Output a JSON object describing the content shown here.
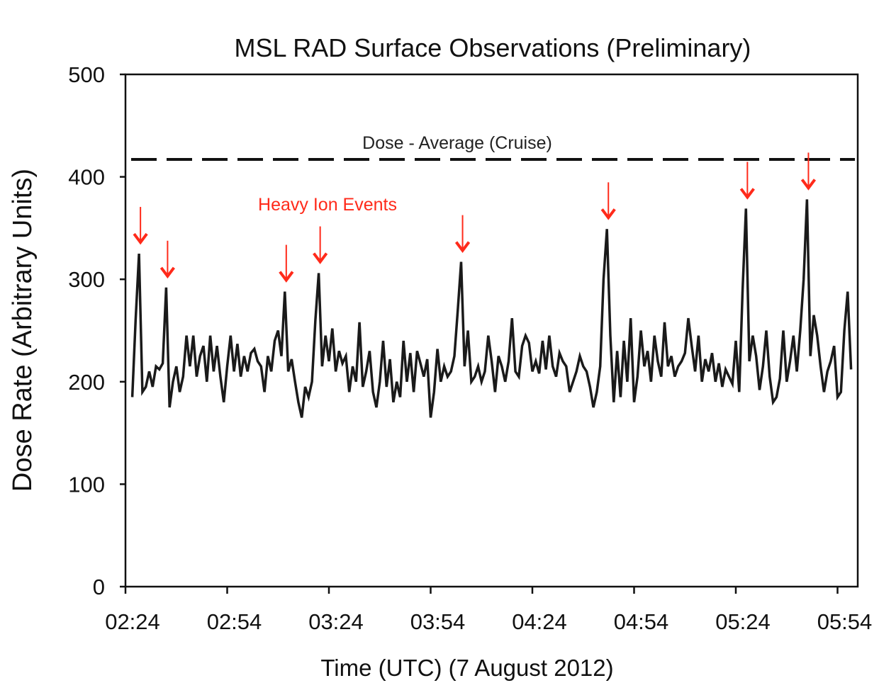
{
  "chart_data": {
    "type": "line",
    "title": "MSL RAD Surface Observations (Preliminary)",
    "xlabel": "Time (UTC) (7 August 2012)",
    "ylabel": "Dose Rate (Arbitrary Units)",
    "ylim": [
      0,
      500
    ],
    "xlim": [
      "02:24",
      "05:58"
    ],
    "yticks": [
      "0",
      "100",
      "200",
      "300",
      "400",
      "500"
    ],
    "xticks": [
      "02:24",
      "02:54",
      "03:24",
      "03:54",
      "04:24",
      "04:54",
      "05:24",
      "05:54"
    ],
    "grid": false,
    "line_color": "#1a1a1a",
    "reference_line": {
      "label": "Dose - Average (Cruise)",
      "value": 417,
      "style": "dashed",
      "color": "#111111"
    },
    "annotation": {
      "label": "Heavy Ion Events",
      "color": "#ff2a1a",
      "event_times": [
        "02:28",
        "02:36",
        "03:11",
        "03:21",
        "04:03",
        "04:46",
        "05:27",
        "05:45"
      ]
    },
    "x": [
      "02:26",
      "02:27",
      "02:28",
      "02:29",
      "02:30",
      "02:31",
      "02:32",
      "02:33",
      "02:34",
      "02:35",
      "02:36",
      "02:37",
      "02:38",
      "02:39",
      "02:40",
      "02:41",
      "02:42",
      "02:43",
      "02:44",
      "02:45",
      "02:46",
      "02:47",
      "02:48",
      "02:49",
      "02:50",
      "02:51",
      "02:52",
      "02:53",
      "02:54",
      "02:55",
      "02:56",
      "02:57",
      "02:58",
      "02:59",
      "03:00",
      "03:01",
      "03:02",
      "03:03",
      "03:04",
      "03:05",
      "03:06",
      "03:07",
      "03:08",
      "03:09",
      "03:10",
      "03:11",
      "03:12",
      "03:13",
      "03:14",
      "03:15",
      "03:16",
      "03:17",
      "03:18",
      "03:19",
      "03:20",
      "03:21",
      "03:22",
      "03:23",
      "03:24",
      "03:25",
      "03:26",
      "03:27",
      "03:28",
      "03:29",
      "03:30",
      "03:31",
      "03:32",
      "03:33",
      "03:34",
      "03:35",
      "03:36",
      "03:37",
      "03:38",
      "03:39",
      "03:40",
      "03:41",
      "03:42",
      "03:43",
      "03:44",
      "03:45",
      "03:46",
      "03:47",
      "03:48",
      "03:49",
      "03:50",
      "03:51",
      "03:52",
      "03:53",
      "03:54",
      "03:55",
      "03:56",
      "03:57",
      "03:58",
      "03:59",
      "04:00",
      "04:01",
      "04:02",
      "04:03",
      "04:04",
      "04:05",
      "04:06",
      "04:07",
      "04:08",
      "04:09",
      "04:10",
      "04:11",
      "04:12",
      "04:13",
      "04:14",
      "04:15",
      "04:16",
      "04:17",
      "04:18",
      "04:19",
      "04:20",
      "04:21",
      "04:22",
      "04:23",
      "04:24",
      "04:25",
      "04:26",
      "04:27",
      "04:28",
      "04:29",
      "04:30",
      "04:31",
      "04:32",
      "04:33",
      "04:34",
      "04:35",
      "04:36",
      "04:37",
      "04:38",
      "04:39",
      "04:40",
      "04:41",
      "04:42",
      "04:43",
      "04:44",
      "04:45",
      "04:46",
      "04:47",
      "04:48",
      "04:49",
      "04:50",
      "04:51",
      "04:52",
      "04:53",
      "04:54",
      "04:55",
      "04:56",
      "04:57",
      "04:58",
      "04:59",
      "05:00",
      "05:01",
      "05:02",
      "05:03",
      "05:04",
      "05:05",
      "05:06",
      "05:07",
      "05:08",
      "05:09",
      "05:10",
      "05:11",
      "05:12",
      "05:13",
      "05:14",
      "05:15",
      "05:16",
      "05:17",
      "05:18",
      "05:19",
      "05:20",
      "05:21",
      "05:22",
      "05:23",
      "05:24",
      "05:25",
      "05:26",
      "05:27",
      "05:28",
      "05:29",
      "05:30",
      "05:31",
      "05:32",
      "05:33",
      "05:34",
      "05:35",
      "05:36",
      "05:37",
      "05:38",
      "05:39",
      "05:40",
      "05:41",
      "05:42",
      "05:43",
      "05:44",
      "05:45",
      "05:46",
      "05:47",
      "05:48",
      "05:49",
      "05:50",
      "05:51",
      "05:52",
      "05:53",
      "05:54",
      "05:55",
      "05:56",
      "05:57",
      "05:58"
    ],
    "values": [
      185,
      260,
      325,
      190,
      195,
      210,
      195,
      215,
      212,
      218,
      292,
      175,
      200,
      215,
      190,
      205,
      245,
      215,
      245,
      205,
      225,
      235,
      200,
      245,
      210,
      235,
      205,
      180,
      215,
      245,
      210,
      237,
      205,
      225,
      210,
      228,
      232,
      220,
      215,
      190,
      225,
      210,
      240,
      250,
      225,
      288,
      210,
      222,
      200,
      180,
      165,
      195,
      185,
      200,
      260,
      306,
      215,
      245,
      220,
      252,
      210,
      230,
      218,
      225,
      190,
      215,
      200,
      258,
      195,
      210,
      230,
      190,
      175,
      200,
      240,
      195,
      222,
      180,
      200,
      185,
      240,
      200,
      228,
      190,
      230,
      218,
      205,
      222,
      165,
      190,
      232,
      200,
      215,
      205,
      210,
      225,
      270,
      317,
      215,
      250,
      200,
      205,
      215,
      200,
      210,
      245,
      220,
      190,
      225,
      215,
      200,
      220,
      262,
      210,
      205,
      235,
      245,
      238,
      210,
      220,
      208,
      240,
      212,
      245,
      215,
      205,
      228,
      220,
      215,
      190,
      200,
      210,
      225,
      215,
      210,
      195,
      175,
      190,
      215,
      300,
      349,
      245,
      180,
      230,
      185,
      240,
      200,
      262,
      180,
      205,
      250,
      215,
      230,
      200,
      245,
      220,
      205,
      258,
      215,
      225,
      205,
      215,
      220,
      228,
      262,
      235,
      210,
      245,
      200,
      222,
      210,
      228,
      200,
      218,
      195,
      212,
      205,
      198,
      240,
      190,
      290,
      369,
      220,
      245,
      225,
      192,
      215,
      250,
      205,
      180,
      185,
      203,
      250,
      200,
      220,
      245,
      210,
      250,
      300,
      378,
      225,
      265,
      245,
      215,
      190,
      210,
      220,
      235,
      185,
      190,
      250,
      288,
      212
    ]
  }
}
